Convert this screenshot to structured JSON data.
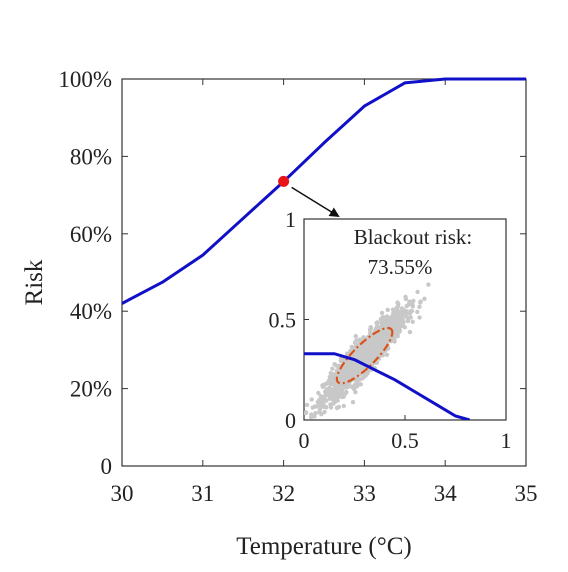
{
  "chart_data": [
    {
      "type": "line",
      "title": "",
      "xlabel": "Temperature (°C)",
      "ylabel": "Risk",
      "xlim": [
        30,
        35
      ],
      "ylim": [
        0,
        1
      ],
      "x_ticks": [
        30,
        31,
        32,
        33,
        34,
        35
      ],
      "x_tick_labels": [
        "30",
        "31",
        "32",
        "33",
        "34",
        "35"
      ],
      "y_ticks": [
        0,
        0.2,
        0.4,
        0.6,
        0.8,
        1.0
      ],
      "y_tick_labels": [
        "0",
        "20%",
        "40%",
        "60%",
        "80%",
        "100%"
      ],
      "grid": false,
      "series": [
        {
          "color": "#1010c8",
          "x": [
            30,
            30.5,
            31,
            31.5,
            32,
            32.5,
            33,
            33.5,
            34,
            34.5,
            35
          ],
          "y": [
            0.42,
            0.475,
            0.545,
            0.64,
            0.735,
            0.835,
            0.93,
            0.99,
            1.0,
            1.0,
            1.0
          ]
        }
      ],
      "highlight_point": {
        "x": 32,
        "y": 0.7355,
        "color": "#e8141a"
      }
    },
    {
      "type": "scatter",
      "title": "",
      "xlim": [
        0,
        1
      ],
      "ylim": [
        0,
        1
      ],
      "x_ticks": [
        0,
        0.5,
        1
      ],
      "x_tick_labels": [
        "0",
        "0.5",
        "1"
      ],
      "y_ticks": [
        0,
        0.5,
        1
      ],
      "y_tick_labels": [
        "0",
        "0.5",
        "1"
      ],
      "annotation_line1": "Blackout risk:",
      "annotation_line2": "73.55%",
      "boundary_curve": {
        "color": "#1010c8",
        "x": [
          0,
          0.15,
          0.25,
          0.35,
          0.45,
          0.55,
          0.65,
          0.75,
          0.82
        ],
        "y": [
          0.33,
          0.33,
          0.3,
          0.25,
          0.2,
          0.14,
          0.08,
          0.02,
          0.0
        ]
      },
      "scatter_cloud": {
        "color": "#c8c8c8",
        "center": [
          0.3,
          0.32
        ],
        "correlation": 0.92,
        "std": [
          0.1,
          0.11
        ]
      },
      "confidence_ellipse": {
        "color": "#d9541a",
        "style": "dash-dot"
      }
    }
  ]
}
